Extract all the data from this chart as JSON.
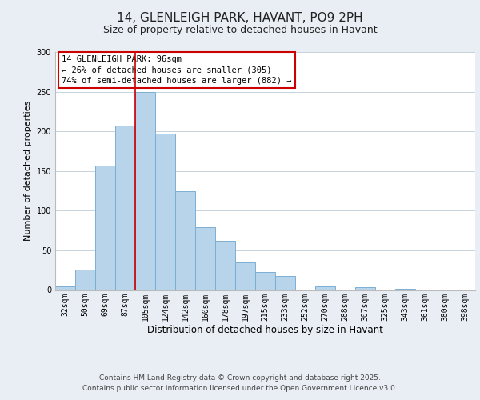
{
  "title": "14, GLENLEIGH PARK, HAVANT, PO9 2PH",
  "subtitle": "Size of property relative to detached houses in Havant",
  "xlabel": "Distribution of detached houses by size in Havant",
  "ylabel": "Number of detached properties",
  "categories": [
    "32sqm",
    "50sqm",
    "69sqm",
    "87sqm",
    "105sqm",
    "124sqm",
    "142sqm",
    "160sqm",
    "178sqm",
    "197sqm",
    "215sqm",
    "233sqm",
    "252sqm",
    "270sqm",
    "288sqm",
    "307sqm",
    "325sqm",
    "343sqm",
    "361sqm",
    "380sqm",
    "398sqm"
  ],
  "values": [
    5,
    26,
    157,
    207,
    250,
    197,
    125,
    79,
    62,
    35,
    23,
    18,
    0,
    5,
    0,
    4,
    0,
    2,
    1,
    0,
    1
  ],
  "bar_color": "#b8d4ea",
  "bar_edge_color": "#7aafd4",
  "background_color": "#e8eef4",
  "plot_bg_color": "#ffffff",
  "grid_color": "#c8d4dc",
  "vline_color": "#cc0000",
  "annotation_text": "14 GLENLEIGH PARK: 96sqm\n← 26% of detached houses are smaller (305)\n74% of semi-detached houses are larger (882) →",
  "annotation_box_color": "#ffffff",
  "annotation_box_edge_color": "#cc0000",
  "ylim": [
    0,
    300
  ],
  "yticks": [
    0,
    50,
    100,
    150,
    200,
    250,
    300
  ],
  "footer_line1": "Contains HM Land Registry data © Crown copyright and database right 2025.",
  "footer_line2": "Contains public sector information licensed under the Open Government Licence v3.0.",
  "title_fontsize": 11,
  "subtitle_fontsize": 9,
  "annotation_fontsize": 7.5,
  "footer_fontsize": 6.5,
  "xlabel_fontsize": 8.5,
  "ylabel_fontsize": 8,
  "tick_fontsize": 7
}
